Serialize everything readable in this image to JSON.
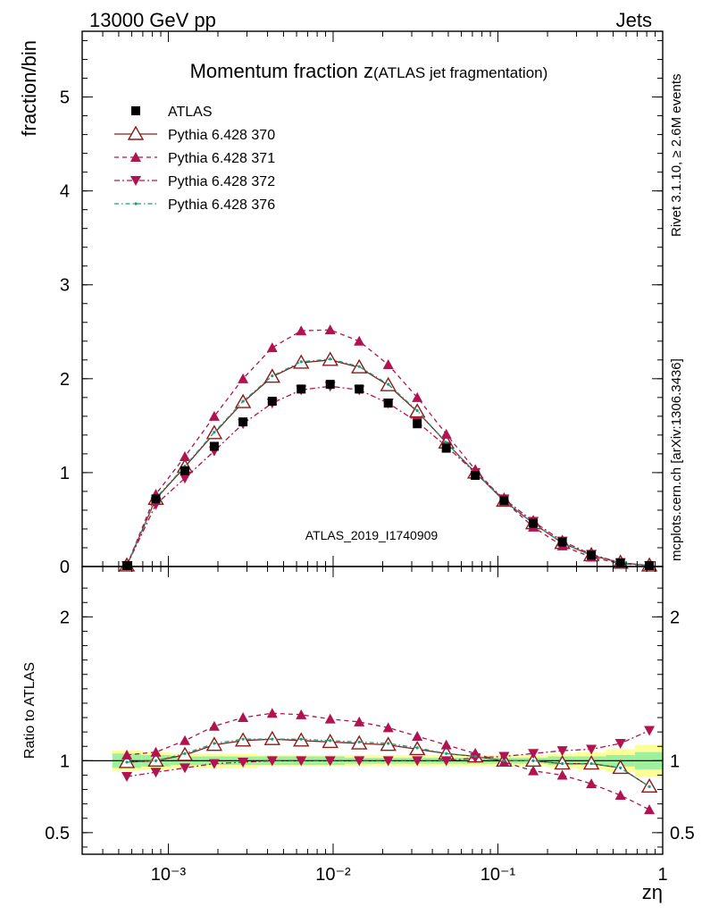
{
  "header": {
    "left": "13000 GeV pp",
    "right": "Jets"
  },
  "side_labels": {
    "rivet": "Rivet 3.1.10, ≥ 2.6M events",
    "mcplots": "mcplots.cern.ch [arXiv:1306.3436]"
  },
  "colors": {
    "data": "#000000",
    "mc370": "#8b1a1a",
    "mc371": "#b0134f",
    "mc372": "#b0134f",
    "mc376": "#1a9e77",
    "band_inner": "#9ef09e",
    "band_outer": "#ffff99",
    "watermark": "#999999"
  },
  "chart_data": [
    {
      "type": "scatter",
      "title": "Momentum fraction z",
      "title_suffix": "(ATLAS jet fragmentation)",
      "ylabel": "fraction/bin",
      "analysis_id": "ATLAS_2019_I1740909",
      "xscale": "log",
      "xlim": [
        0.0003,
        1.0
      ],
      "ylim": [
        0,
        5.7
      ],
      "yticks": [
        "0",
        "1",
        "2",
        "3",
        "4",
        "5"
      ],
      "legend_position": "top-left",
      "x": [
        0.00056,
        0.00084,
        0.00126,
        0.0019,
        0.00284,
        0.00427,
        0.0064,
        0.0096,
        0.0144,
        0.0216,
        0.0324,
        0.0486,
        0.0729,
        0.109,
        0.164,
        0.246,
        0.369,
        0.554,
        0.83
      ],
      "series": [
        {
          "name": "ATLAS",
          "style": "data",
          "values": [
            0.01,
            0.72,
            1.02,
            1.28,
            1.54,
            1.76,
            1.89,
            1.94,
            1.89,
            1.74,
            1.52,
            1.26,
            0.97,
            0.7,
            0.46,
            0.26,
            0.12,
            0.04,
            0.01
          ]
        },
        {
          "name": "Pythia 6.428 370",
          "style": "solid-open-triangle",
          "values": [
            0.01,
            0.72,
            1.06,
            1.42,
            1.75,
            2.02,
            2.17,
            2.2,
            2.12,
            1.93,
            1.65,
            1.32,
            1.0,
            0.7,
            0.46,
            0.25,
            0.12,
            0.04,
            0.01
          ]
        },
        {
          "name": "Pythia 6.428 371",
          "style": "dashed-triangle-up",
          "values": [
            0.01,
            0.77,
            1.17,
            1.6,
            2.0,
            2.33,
            2.51,
            2.52,
            2.4,
            2.15,
            1.8,
            1.41,
            1.03,
            0.7,
            0.42,
            0.22,
            0.1,
            0.03,
            0.01
          ]
        },
        {
          "name": "Pythia 6.428 372",
          "style": "dashdot-triangle-down",
          "values": [
            0.01,
            0.66,
            0.94,
            1.23,
            1.52,
            1.74,
            1.88,
            1.92,
            1.88,
            1.74,
            1.54,
            1.28,
            1.0,
            0.72,
            0.48,
            0.27,
            0.13,
            0.04,
            0.01
          ]
        },
        {
          "name": "Pythia 6.428 376",
          "style": "dashdot-dot",
          "values": [
            0.01,
            0.73,
            1.07,
            1.43,
            1.76,
            2.03,
            2.18,
            2.21,
            2.13,
            1.94,
            1.66,
            1.32,
            1.0,
            0.7,
            0.46,
            0.25,
            0.12,
            0.04,
            0.01
          ]
        }
      ]
    },
    {
      "type": "scatter",
      "ylabel": "Ratio to ATLAS",
      "xlabel": "zη",
      "xscale": "log",
      "xlim": [
        0.0003,
        1.0
      ],
      "ylim": [
        0.35,
        2.35
      ],
      "yticks": [
        "0.5",
        "1",
        "2"
      ],
      "xticks": [
        "10⁻³",
        "10⁻²",
        "10⁻¹",
        "1"
      ],
      "x": [
        0.00056,
        0.00084,
        0.00126,
        0.0019,
        0.00284,
        0.00427,
        0.0064,
        0.0096,
        0.0144,
        0.0216,
        0.0324,
        0.0486,
        0.0729,
        0.109,
        0.164,
        0.246,
        0.369,
        0.554,
        0.83
      ],
      "band_inner": [
        0.05,
        0.04,
        0.03,
        0.03,
        0.03,
        0.03,
        0.03,
        0.03,
        0.02,
        0.02,
        0.02,
        0.02,
        0.02,
        0.02,
        0.02,
        0.03,
        0.03,
        0.04,
        0.06
      ],
      "band_outer": [
        0.07,
        0.06,
        0.05,
        0.05,
        0.05,
        0.04,
        0.04,
        0.04,
        0.04,
        0.04,
        0.04,
        0.04,
        0.04,
        0.04,
        0.04,
        0.05,
        0.06,
        0.08,
        0.11
      ],
      "series": [
        {
          "name": "Pythia 6.428 370",
          "style": "solid-open-triangle",
          "values": [
            0.99,
            1.0,
            1.04,
            1.11,
            1.14,
            1.15,
            1.14,
            1.13,
            1.12,
            1.11,
            1.08,
            1.05,
            1.03,
            1.0,
            1.0,
            0.98,
            0.98,
            0.95,
            0.82
          ]
        },
        {
          "name": "Pythia 6.428 371",
          "style": "dashed-triangle-up",
          "values": [
            1.04,
            1.06,
            1.14,
            1.24,
            1.3,
            1.33,
            1.32,
            1.29,
            1.27,
            1.23,
            1.17,
            1.11,
            1.05,
            0.99,
            0.93,
            0.9,
            0.84,
            0.76,
            0.66
          ]
        },
        {
          "name": "Pythia 6.428 372",
          "style": "dashdot-triangle-down",
          "values": [
            0.89,
            0.92,
            0.95,
            0.98,
            0.99,
            1.0,
            1.0,
            1.0,
            1.0,
            1.0,
            1.0,
            1.0,
            1.02,
            1.03,
            1.05,
            1.07,
            1.08,
            1.12,
            1.21
          ]
        },
        {
          "name": "Pythia 6.428 376",
          "style": "dashdot-dot",
          "values": [
            0.99,
            1.0,
            1.05,
            1.12,
            1.15,
            1.15,
            1.15,
            1.14,
            1.13,
            1.12,
            1.09,
            1.05,
            1.03,
            1.0,
            1.0,
            0.98,
            0.98,
            0.95,
            0.82
          ]
        }
      ]
    }
  ]
}
